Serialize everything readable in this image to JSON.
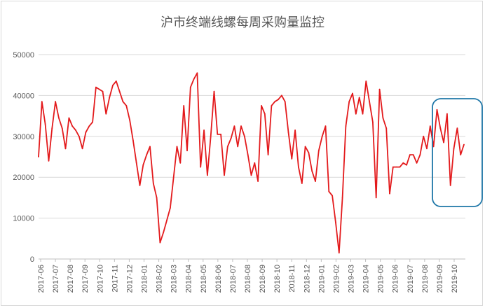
{
  "chart_data": {
    "type": "line",
    "title": "沪市终端线螺每周采购量监控",
    "xlabel": "",
    "ylabel": "",
    "ylim": [
      0,
      50000
    ],
    "yticks": [
      0,
      10000,
      20000,
      30000,
      40000,
      50000
    ],
    "grid": "horizontal",
    "legend": "none",
    "line_color": "#e31a1c",
    "highlight_color": "#1f77a8",
    "x_tick_labels": [
      "2017-06",
      "2017-07",
      "2017-08",
      "2017-09",
      "2017-10",
      "2017-11",
      "2017-12",
      "2018-01",
      "2018-02",
      "2018-03",
      "2018-04",
      "2018-05",
      "2018-06",
      "2018-07",
      "2018-08",
      "2018-09",
      "2018-10",
      "2018-11",
      "2018-12",
      "2019-01",
      "2019-02",
      "2019-03",
      "2019-04",
      "2019-05",
      "2019-06",
      "2019-07",
      "2019-08",
      "2019-09",
      "2019-10"
    ],
    "series": [
      {
        "values": [
          25000,
          38500,
          33000,
          24000,
          32000,
          38500,
          34500,
          32000,
          27000,
          34500,
          32500,
          31500,
          30000,
          27000,
          31000,
          32500,
          33500,
          42000,
          41500,
          41000,
          35500,
          39500,
          42500,
          43500,
          41000,
          38500,
          37500,
          34000,
          29000,
          23500,
          18000,
          23000,
          25500,
          27500,
          18500,
          15000,
          4000,
          6500,
          9500,
          12500,
          20000,
          27500,
          23500,
          37500,
          26500,
          42000,
          44000,
          45500,
          22500,
          31500,
          20500,
          30000,
          41000,
          30500,
          30500,
          20500,
          27500,
          29500,
          32500,
          27500,
          32500,
          30000,
          25500,
          20500,
          23500,
          19000,
          37500,
          35500,
          25500,
          37500,
          38500,
          39000,
          40000,
          38500,
          31000,
          24500,
          31500,
          22500,
          18500,
          27500,
          26000,
          21500,
          19000,
          26500,
          30000,
          32500,
          16500,
          15500,
          9000,
          1500,
          15000,
          32500,
          38500,
          40500,
          35500,
          39500,
          35500,
          43500,
          38500,
          33500,
          15000,
          41500,
          34500,
          32000,
          16000,
          22500,
          22500,
          22500,
          23500,
          23000,
          25500,
          25500,
          23500,
          25500,
          30000,
          27000,
          32500,
          27500,
          36500,
          32000,
          28500,
          35500,
          18000,
          27000,
          32000,
          25500,
          28000
        ]
      }
    ]
  }
}
